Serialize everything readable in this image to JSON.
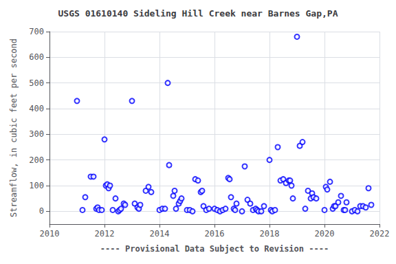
{
  "chart_data": {
    "type": "scatter",
    "title": "USGS 01610140 Sideling Hill Creek near Barnes Gap,PA",
    "xlabel": "---- Provisional Data Subject to Revision ----",
    "ylabel": "Streamflow, in cubic feet per second",
    "x": [
      2011.0,
      2011.2,
      2011.3,
      2011.5,
      2011.6,
      2011.7,
      2011.75,
      2011.8,
      2011.9,
      2012.0,
      2012.05,
      2012.1,
      2012.15,
      2012.2,
      2012.3,
      2012.4,
      2012.5,
      2012.55,
      2012.6,
      2012.7,
      2012.75,
      2013.0,
      2013.1,
      2013.2,
      2013.25,
      2013.3,
      2013.5,
      2013.6,
      2013.7,
      2014.0,
      2014.1,
      2014.2,
      2014.3,
      2014.35,
      2014.5,
      2014.55,
      2014.6,
      2014.7,
      2014.75,
      2014.8,
      2015.0,
      2015.1,
      2015.2,
      2015.3,
      2015.4,
      2015.5,
      2015.55,
      2015.6,
      2015.7,
      2015.8,
      2016.0,
      2016.1,
      2016.2,
      2016.3,
      2016.4,
      2016.5,
      2016.55,
      2016.6,
      2016.7,
      2016.75,
      2016.8,
      2017.0,
      2017.1,
      2017.2,
      2017.3,
      2017.4,
      2017.5,
      2017.55,
      2017.6,
      2017.7,
      2017.8,
      2018.0,
      2018.05,
      2018.1,
      2018.2,
      2018.3,
      2018.4,
      2018.5,
      2018.6,
      2018.7,
      2018.75,
      2018.8,
      2018.85,
      2019.0,
      2019.1,
      2019.2,
      2019.3,
      2019.4,
      2019.5,
      2019.55,
      2019.6,
      2019.7,
      2020.0,
      2020.05,
      2020.1,
      2020.2,
      2020.3,
      2020.35,
      2020.4,
      2020.5,
      2020.6,
      2020.7,
      2020.75,
      2020.8,
      2021.0,
      2021.1,
      2021.2,
      2021.3,
      2021.4,
      2021.5,
      2021.6,
      2021.7
    ],
    "values": [
      430,
      5,
      55,
      135,
      135,
      10,
      15,
      5,
      5,
      280,
      100,
      105,
      90,
      100,
      5,
      50,
      0,
      5,
      10,
      30,
      25,
      430,
      30,
      15,
      10,
      25,
      80,
      95,
      75,
      5,
      10,
      10,
      500,
      180,
      60,
      80,
      10,
      30,
      40,
      50,
      5,
      5,
      0,
      125,
      120,
      75,
      80,
      20,
      5,
      10,
      10,
      5,
      0,
      5,
      10,
      130,
      125,
      55,
      10,
      5,
      30,
      0,
      175,
      45,
      30,
      5,
      10,
      5,
      0,
      0,
      20,
      200,
      5,
      0,
      5,
      250,
      120,
      125,
      110,
      120,
      120,
      100,
      50,
      680,
      255,
      270,
      10,
      80,
      50,
      70,
      55,
      50,
      5,
      95,
      85,
      115,
      10,
      20,
      20,
      35,
      60,
      5,
      5,
      35,
      0,
      5,
      0,
      20,
      20,
      15,
      90,
      25
    ],
    "color": "blue",
    "marker": "emptyCircle",
    "xlim": [
      2010,
      2022
    ],
    "xticks": [
      2010,
      2012,
      2014,
      2016,
      2018,
      2020,
      2022
    ],
    "ylim": [
      -50,
      700
    ],
    "yticks": [
      0,
      100,
      200,
      300,
      400,
      500,
      600,
      700
    ],
    "grid": true
  }
}
